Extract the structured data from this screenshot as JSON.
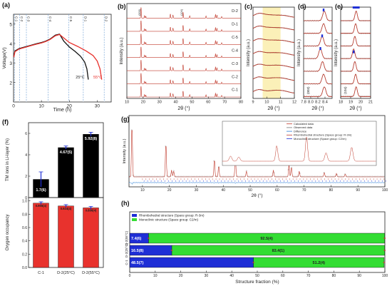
{
  "chart_data": [
    {
      "panel": "a",
      "type": "line",
      "xlabel": "Time (h)",
      "ylabel": "Voltage(V)",
      "xlim": [
        0,
        35
      ],
      "ylim": [
        1,
        5.5
      ],
      "xticks": [
        "0",
        "10",
        "20",
        "30"
      ],
      "yticks": [
        "2",
        "3",
        "4",
        "5"
      ],
      "markers": [
        "C-1",
        "C-2",
        "C-3",
        "C-4",
        "C-5",
        "D-1",
        "D-2"
      ],
      "marker_x": [
        0.3,
        2.2,
        4.6,
        12.4,
        19.8,
        25.0,
        32.5
      ],
      "series": [
        {
          "name": "25°C",
          "color": "#111111",
          "x": [
            0.1,
            0.5,
            2,
            4,
            6,
            8,
            10,
            11.5,
            13,
            15,
            16.5,
            18,
            20,
            22,
            24,
            25.5,
            26.3,
            26.8
          ],
          "y": [
            3.35,
            3.62,
            3.74,
            3.82,
            3.9,
            3.98,
            4.05,
            4.12,
            4.22,
            4.43,
            4.48,
            4.12,
            3.82,
            3.6,
            3.35,
            3.05,
            2.7,
            2.15
          ]
        },
        {
          "name": "55°C",
          "color": "#e8322d",
          "x": [
            0.1,
            0.5,
            2,
            4,
            6,
            8,
            10,
            11.5,
            13,
            15,
            16.5,
            18,
            20,
            23,
            26,
            28.5,
            30,
            31,
            31.6
          ],
          "y": [
            3.3,
            3.58,
            3.72,
            3.8,
            3.88,
            3.96,
            4.03,
            4.1,
            4.2,
            4.4,
            4.46,
            4.28,
            4.05,
            3.85,
            3.62,
            3.38,
            3.1,
            2.7,
            2.15
          ]
        }
      ],
      "annotations": [
        "25°C",
        "55°C"
      ]
    },
    {
      "panel": "b",
      "type": "line",
      "xlabel": "2θ (°)",
      "ylabel": "Intensity (a.u.)",
      "xlim": [
        10,
        80
      ],
      "xticks": [
        "10",
        "20",
        "30",
        "40",
        "50",
        "60",
        "70",
        "80"
      ],
      "peak_labels": [
        "(003)",
        "(104)"
      ],
      "peaks_2theta": [
        18.7,
        20.8,
        21.6,
        36.7,
        38.3,
        44.5,
        48.6,
        58.6,
        64.4,
        65.3,
        68.2
      ],
      "peak_rel_height": [
        1.0,
        0.22,
        0.18,
        0.38,
        0.3,
        0.55,
        0.22,
        0.2,
        0.34,
        0.28,
        0.15
      ],
      "traces": [
        "D-2",
        "D-1",
        "C-5",
        "C-4",
        "C-3",
        "C-2",
        "C-1"
      ]
    },
    {
      "panel": "c",
      "type": "line",
      "xlabel": "2θ (°)",
      "ylabel": "Intensity (a.u.)",
      "xlim": [
        9,
        12
      ],
      "xticks": [
        "9",
        "10",
        "11",
        "12"
      ],
      "highlight_range": [
        9.7,
        11.0
      ],
      "traces": 7
    },
    {
      "panel": "d",
      "type": "line",
      "xlabel": "2θ (°)",
      "ylabel": "Intensity (a.u.)",
      "xlim": [
        7.8,
        8.6
      ],
      "xticks": [
        "7.8",
        "8.0",
        "8.2",
        "8.4"
      ],
      "peak_label": "(003)",
      "peak_position": [
        8.38,
        8.36,
        8.32,
        8.27,
        8.33,
        8.36,
        8.38
      ],
      "traces": 7
    },
    {
      "panel": "e",
      "type": "line",
      "xlabel": "2θ (°)",
      "ylabel": "Intensity (a.u.)",
      "xlim": [
        18,
        21
      ],
      "xticks": [
        "18",
        "19",
        "20",
        "21"
      ],
      "peak_label": "(104)",
      "peak_position": [
        19.55,
        19.5,
        19.42,
        19.3,
        19.42,
        19.5,
        19.55
      ],
      "traces": 7
    },
    {
      "panel": "f",
      "type": "bar",
      "categories": [
        "C-1",
        "D-2(25°C)",
        "D-2(55°C)"
      ],
      "series": [
        {
          "name": "TM ions in Li-layer (%)",
          "color": "#000000",
          "values": [
            1.7,
            4.67,
            5.92
          ],
          "labels": [
            "1.7(6)",
            "4.67(5)",
            "5.92(8)"
          ],
          "errors": [
            0.6,
            0.05,
            0.08
          ],
          "ylim": [
            0,
            7
          ],
          "yticks": [
            "0",
            "2",
            "4",
            "6"
          ]
        },
        {
          "name": "Oxygen occupancy",
          "color": "#e8322d",
          "values": [
            0.966,
            0.924,
            0.896
          ],
          "labels": [
            "0.966(4)",
            "0.924(4)",
            "0.896(4)"
          ],
          "errors": [
            0.004,
            0.004,
            0.004
          ],
          "ylim": [
            0,
            1.05
          ],
          "yticks": [
            "0.0",
            "0.2",
            "0.4",
            "0.6",
            "0.8",
            "1.0"
          ]
        }
      ],
      "ylabel_top": "TM ions in Li-layer (%)",
      "ylabel_bottom": "Oxygen occupancy"
    },
    {
      "panel": "g",
      "type": "scatter",
      "xlabel": "2θ (°)",
      "ylabel": "Intensity (a.u.)",
      "xlim": [
        5,
        100
      ],
      "xticks": [
        "10",
        "20",
        "30",
        "40",
        "50",
        "60",
        "70",
        "80",
        "90",
        "100"
      ],
      "peaks_2theta": [
        6.1,
        18.7,
        20.8,
        21.6,
        36.7,
        38.3,
        44.5,
        48.6,
        58.6,
        64.4,
        65.3,
        68.2,
        77.5,
        82.0,
        85.3
      ],
      "peak_rel_height": [
        0.95,
        0.62,
        0.12,
        0.1,
        0.32,
        0.2,
        0.36,
        0.1,
        0.12,
        0.22,
        0.18,
        0.1,
        0.08,
        0.06,
        0.05
      ],
      "legend": [
        "Calculated data",
        "Observed data",
        "Difference",
        "Rhombohedral structure (Space group: R-3m)",
        "Monoclinic structure (Space group: C2/m)"
      ]
    },
    {
      "panel": "h",
      "type": "bar",
      "orientation": "horizontal-stacked",
      "xlabel": "Structure fraction (%)",
      "xlim": [
        0,
        100
      ],
      "xticks": [
        "0",
        "10",
        "20",
        "30",
        "40",
        "50",
        "60",
        "70",
        "80",
        "90",
        "100"
      ],
      "categories": [
        "D-2(55°C)",
        "D-2(25°C)",
        "C-1"
      ],
      "series": [
        {
          "name": "Rhombohedral structure (Space group: R-3m)",
          "color": "#1f2fd6",
          "values": [
            7.4,
            16.5,
            48.5
          ],
          "labels": [
            "7.4(6)",
            "16.5(8)",
            "48.5(7)"
          ]
        },
        {
          "name": "Monoclinic structure (Space group: C2/m)",
          "color": "#33dd33",
          "values": [
            92.5,
            83.4,
            51.2
          ],
          "labels": [
            "92.5(4)",
            "83.4(1)",
            "51.2(4)"
          ]
        }
      ]
    }
  ]
}
